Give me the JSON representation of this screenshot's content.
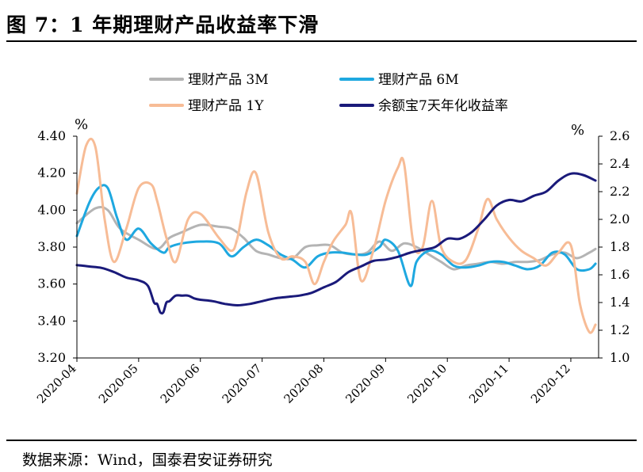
{
  "figure": {
    "title": "图 7：1 年期理财产品收益率下滑",
    "source": "数据来源：Wind，国泰君安证券研究"
  },
  "chart_data": {
    "type": "line",
    "left_axis": {
      "unit": "%",
      "ylim": [
        3.2,
        4.4
      ],
      "ticks": [
        "3.20",
        "3.40",
        "3.60",
        "3.80",
        "4.00",
        "4.20",
        "4.40"
      ]
    },
    "right_axis": {
      "unit": "%",
      "ylim": [
        1.0,
        2.6
      ],
      "ticks": [
        "1.0",
        "1.2",
        "1.4",
        "1.6",
        "1.8",
        "2.0",
        "2.2",
        "2.4",
        "2.6"
      ]
    },
    "x_ticks": [
      "2020-04",
      "2020-05",
      "2020-06",
      "2020-07",
      "2020-08",
      "2020-09",
      "2020-10",
      "2020-11",
      "2020-12"
    ],
    "x_range": [
      0,
      8.45
    ],
    "grid": false,
    "legend_position": "top",
    "series": [
      {
        "name": "理财产品 3M",
        "axis": "left",
        "color": "#b4b4b4",
        "x": [
          0.0,
          0.3,
          0.5,
          0.7,
          1.0,
          1.3,
          1.5,
          1.7,
          2.0,
          2.3,
          2.5,
          2.7,
          2.9,
          3.1,
          3.3,
          3.5,
          3.7,
          3.9,
          4.1,
          4.3,
          4.5,
          4.7,
          4.9,
          5.1,
          5.3,
          5.5,
          5.7,
          5.9,
          6.1,
          6.3,
          6.5,
          6.7,
          6.9,
          7.1,
          7.3,
          7.5,
          7.7,
          7.9,
          8.1,
          8.3,
          8.4
        ],
        "values": [
          3.93,
          4.01,
          4.0,
          3.9,
          3.84,
          3.79,
          3.85,
          3.88,
          3.92,
          3.91,
          3.9,
          3.85,
          3.78,
          3.76,
          3.74,
          3.74,
          3.8,
          3.81,
          3.81,
          3.77,
          3.76,
          3.77,
          3.83,
          3.78,
          3.82,
          3.8,
          3.76,
          3.72,
          3.68,
          3.7,
          3.71,
          3.72,
          3.71,
          3.72,
          3.72,
          3.73,
          3.76,
          3.77,
          3.74,
          3.77,
          3.79
        ]
      },
      {
        "name": "理财产品 6M",
        "axis": "left",
        "color": "#1ea8e0",
        "x": [
          0.0,
          0.2,
          0.35,
          0.5,
          0.65,
          0.8,
          1.0,
          1.2,
          1.4,
          1.5,
          1.7,
          2.0,
          2.3,
          2.5,
          2.7,
          2.9,
          3.1,
          3.3,
          3.5,
          3.7,
          3.9,
          4.1,
          4.3,
          4.5,
          4.7,
          4.9,
          5.0,
          5.2,
          5.4,
          5.5,
          5.7,
          5.9,
          6.1,
          6.3,
          6.5,
          6.7,
          6.9,
          7.1,
          7.3,
          7.5,
          7.7,
          7.9,
          8.1,
          8.3,
          8.4
        ],
        "values": [
          3.86,
          4.04,
          4.12,
          4.12,
          3.96,
          3.84,
          3.9,
          3.82,
          3.77,
          3.8,
          3.82,
          3.83,
          3.82,
          3.75,
          3.8,
          3.84,
          3.81,
          3.76,
          3.73,
          3.69,
          3.75,
          3.77,
          3.77,
          3.76,
          3.76,
          3.8,
          3.84,
          3.78,
          3.59,
          3.72,
          3.78,
          3.76,
          3.7,
          3.69,
          3.7,
          3.72,
          3.72,
          3.7,
          3.68,
          3.7,
          3.77,
          3.76,
          3.68,
          3.68,
          3.71
        ]
      },
      {
        "name": "理财产品 1Y",
        "axis": "left",
        "color": "#f7bc96",
        "x": [
          0.0,
          0.15,
          0.3,
          0.45,
          0.6,
          0.8,
          1.0,
          1.2,
          1.3,
          1.45,
          1.6,
          1.8,
          2.0,
          2.3,
          2.5,
          2.6,
          2.75,
          2.9,
          3.1,
          3.3,
          3.5,
          3.7,
          3.85,
          4.0,
          4.15,
          4.35,
          4.45,
          4.6,
          4.8,
          5.0,
          5.2,
          5.3,
          5.45,
          5.6,
          5.75,
          5.9,
          6.1,
          6.3,
          6.5,
          6.65,
          6.8,
          7.0,
          7.2,
          7.4,
          7.6,
          7.8,
          8.0,
          8.15,
          8.3,
          8.4
        ],
        "values": [
          4.09,
          4.35,
          4.34,
          3.95,
          3.72,
          3.9,
          4.12,
          4.14,
          4.05,
          3.85,
          3.72,
          3.95,
          3.98,
          3.85,
          3.78,
          3.85,
          4.1,
          4.2,
          3.88,
          3.74,
          3.75,
          3.72,
          3.6,
          3.72,
          3.83,
          3.92,
          3.98,
          3.62,
          3.78,
          4.05,
          4.23,
          4.25,
          3.82,
          3.8,
          4.05,
          3.8,
          3.72,
          3.73,
          3.9,
          4.06,
          3.95,
          3.85,
          3.78,
          3.74,
          3.7,
          3.77,
          3.81,
          3.49,
          3.34,
          3.38
        ]
      },
      {
        "name": "余额宝7天年化收益率",
        "axis": "right",
        "color": "#1a1a7a",
        "x": [
          0.0,
          0.2,
          0.4,
          0.6,
          0.8,
          1.0,
          1.15,
          1.25,
          1.3,
          1.35,
          1.4,
          1.45,
          1.5,
          1.6,
          1.7,
          1.8,
          1.9,
          2.0,
          2.2,
          2.4,
          2.6,
          2.8,
          3.0,
          3.2,
          3.4,
          3.6,
          3.8,
          4.0,
          4.2,
          4.4,
          4.6,
          4.8,
          5.0,
          5.2,
          5.4,
          5.6,
          5.8,
          6.0,
          6.2,
          6.4,
          6.6,
          6.8,
          7.0,
          7.2,
          7.4,
          7.6,
          7.8,
          8.0,
          8.2,
          8.4
        ],
        "values": [
          1.67,
          1.66,
          1.65,
          1.62,
          1.58,
          1.56,
          1.52,
          1.4,
          1.39,
          1.33,
          1.33,
          1.4,
          1.41,
          1.45,
          1.45,
          1.45,
          1.43,
          1.42,
          1.41,
          1.39,
          1.38,
          1.39,
          1.41,
          1.43,
          1.44,
          1.45,
          1.47,
          1.51,
          1.55,
          1.62,
          1.66,
          1.7,
          1.71,
          1.73,
          1.76,
          1.78,
          1.8,
          1.86,
          1.86,
          1.91,
          2.0,
          2.1,
          2.14,
          2.13,
          2.17,
          2.2,
          2.28,
          2.33,
          2.32,
          2.28
        ]
      }
    ]
  }
}
